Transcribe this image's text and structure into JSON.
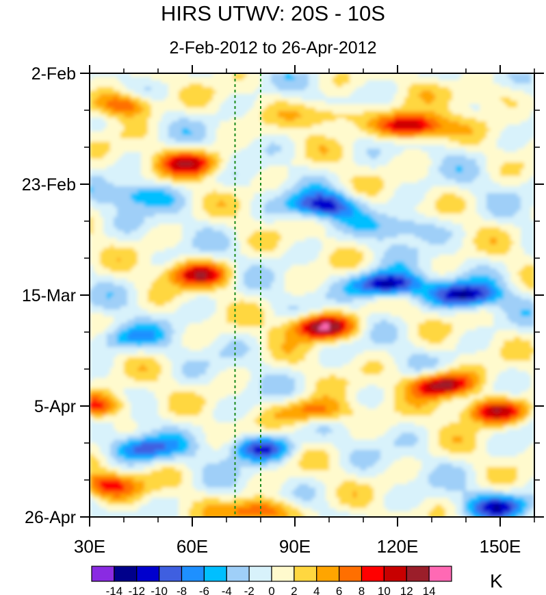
{
  "title": "HIRS UTWV: 20S - 10S",
  "subtitle": "2-Feb-2012 to 26-Apr-2012",
  "colorbar": {
    "units": "K",
    "labels": [
      "-14",
      "-12",
      "-10",
      "-8",
      "-6",
      "-4",
      "-2",
      "0",
      "2",
      "4",
      "6",
      "8",
      "10",
      "12",
      "14"
    ],
    "colors": [
      "#8a2be2",
      "#00008b",
      "#0000cd",
      "#3f5fe0",
      "#1e90ff",
      "#00bfff",
      "#9fcff8",
      "#d8f2fb",
      "#fffacd",
      "#ffd740",
      "#ffa500",
      "#ff6f00",
      "#ff0000",
      "#c80000",
      "#9b1e2a",
      "#ff69b4"
    ]
  },
  "chart_data": {
    "type": "heatmap",
    "title": "HIRS UTWV: 20S - 10S",
    "subtitle": "2-Feb-2012 to 26-Apr-2012",
    "x_ticks": [
      "30E",
      "60E",
      "90E",
      "120E",
      "150E"
    ],
    "x_tick_values": [
      30,
      60,
      90,
      120,
      150
    ],
    "xlim": [
      30,
      160
    ],
    "y_ticks": [
      "2-Feb",
      "23-Feb",
      "15-Mar",
      "5-Apr",
      "26-Apr"
    ],
    "y_tick_dates": [
      "2012-02-02",
      "2012-02-23",
      "2012-03-15",
      "2012-04-05",
      "2012-04-26"
    ],
    "ylim": [
      "2012-02-02",
      "2012-04-26"
    ],
    "reference_lines_longitude": [
      72.5,
      80
    ],
    "units": "K",
    "levels": [
      -14,
      -12,
      -10,
      -8,
      -6,
      -4,
      -2,
      0,
      2,
      4,
      6,
      8,
      10,
      12,
      14
    ],
    "features": [
      {
        "lon": 124,
        "date": "2012-02-12",
        "value": 14
      },
      {
        "lon": 40,
        "date": "2012-02-08",
        "value": 9
      },
      {
        "lon": 60,
        "date": "2012-02-19",
        "value": 10
      },
      {
        "lon": 100,
        "date": "2012-02-10",
        "value": 6
      },
      {
        "lon": 145,
        "date": "2012-02-06",
        "value": 4
      },
      {
        "lon": 45,
        "date": "2012-02-25",
        "value": -6
      },
      {
        "lon": 98,
        "date": "2012-02-27",
        "value": -11
      },
      {
        "lon": 122,
        "date": "2012-03-02",
        "value": -5
      },
      {
        "lon": 62,
        "date": "2012-03-11",
        "value": 10
      },
      {
        "lon": 117,
        "date": "2012-03-13",
        "value": -15
      },
      {
        "lon": 140,
        "date": "2012-03-15",
        "value": -12
      },
      {
        "lon": 98,
        "date": "2012-03-21",
        "value": 14
      },
      {
        "lon": 40,
        "date": "2012-03-23",
        "value": -6
      },
      {
        "lon": 133,
        "date": "2012-04-01",
        "value": 14
      },
      {
        "lon": 148,
        "date": "2012-04-06",
        "value": 12
      },
      {
        "lon": 32,
        "date": "2012-04-05",
        "value": 9
      },
      {
        "lon": 96,
        "date": "2012-04-06",
        "value": 9
      },
      {
        "lon": 80,
        "date": "2012-04-13",
        "value": -10
      },
      {
        "lon": 45,
        "date": "2012-04-13",
        "value": -9
      },
      {
        "lon": 35,
        "date": "2012-04-20",
        "value": 9
      },
      {
        "lon": 80,
        "date": "2012-04-25",
        "value": 10
      },
      {
        "lon": 150,
        "date": "2012-04-24",
        "value": -9
      }
    ]
  }
}
